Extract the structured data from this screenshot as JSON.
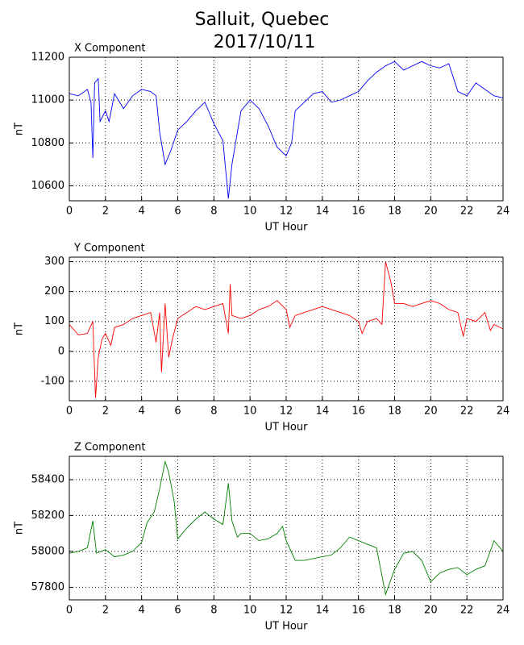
{
  "title": [
    "Salluit, Quebec",
    "2017/10/11"
  ],
  "chart_data": [
    {
      "type": "line",
      "title": "X Component",
      "xlabel": "UT Hour",
      "ylabel": "nT",
      "grid": true,
      "xlim": [
        0,
        24
      ],
      "xticks": [
        0,
        2,
        4,
        6,
        8,
        10,
        12,
        14,
        16,
        18,
        20,
        22,
        24
      ],
      "ylim": [
        10530,
        11200
      ],
      "yticks": [
        10600,
        10800,
        11000,
        11200
      ],
      "x": [
        0,
        0.5,
        1,
        1.2,
        1.3,
        1.4,
        1.6,
        1.7,
        2,
        2.2,
        2.5,
        3,
        3.5,
        4,
        4.5,
        4.8,
        5,
        5.3,
        5.6,
        6,
        6.5,
        7,
        7.5,
        8,
        8.5,
        8.8,
        9,
        9.5,
        10,
        10.5,
        11,
        11.5,
        12,
        12.3,
        12.5,
        13,
        13.5,
        14,
        14.5,
        15,
        15.5,
        16,
        16.5,
        17,
        17.5,
        18,
        18.5,
        19,
        19.5,
        20,
        20.5,
        21,
        21.5,
        22,
        22.5,
        23,
        23.5,
        24
      ],
      "series": [
        {
          "color": "#0000ff",
          "values": [
            11030,
            11020,
            11050,
            10990,
            10730,
            11080,
            11100,
            10900,
            10950,
            10900,
            11030,
            10960,
            11020,
            11050,
            11040,
            11020,
            10850,
            10700,
            10760,
            10860,
            10900,
            10950,
            10990,
            10890,
            10810,
            10540,
            10700,
            10950,
            11000,
            10960,
            10880,
            10780,
            10740,
            10800,
            10950,
            10990,
            11030,
            11040,
            10990,
            11000,
            11020,
            11040,
            11090,
            11130,
            11160,
            11180,
            11140,
            11160,
            11180,
            11160,
            11150,
            11170,
            11040,
            11020,
            11080,
            11050,
            11020,
            11010
          ]
        }
      ]
    },
    {
      "type": "line",
      "title": "Y Component",
      "xlabel": "UT Hour",
      "ylabel": "nT",
      "grid": true,
      "xlim": [
        0,
        24
      ],
      "xticks": [
        0,
        2,
        4,
        6,
        8,
        10,
        12,
        14,
        16,
        18,
        20,
        22,
        24
      ],
      "ylim": [
        -165,
        315
      ],
      "yticks": [
        -100,
        0,
        100,
        200,
        300
      ],
      "x": [
        0,
        0.5,
        1,
        1.3,
        1.45,
        1.6,
        1.8,
        2,
        2.3,
        2.5,
        3,
        3.5,
        4,
        4.5,
        4.8,
        5,
        5.1,
        5.3,
        5.5,
        5.7,
        6,
        6.5,
        7,
        7.5,
        8,
        8.5,
        8.8,
        8.9,
        9,
        9.5,
        10,
        10.5,
        11,
        11.5,
        12,
        12.2,
        12.5,
        13,
        13.5,
        14,
        14.5,
        15,
        15.5,
        16,
        16.2,
        16.5,
        17,
        17.3,
        17.5,
        17.8,
        18,
        18.5,
        19,
        19.5,
        20,
        20.5,
        21,
        21.5,
        21.8,
        22,
        22.5,
        23,
        23.3,
        23.5,
        24
      ],
      "series": [
        {
          "color": "#ff0000",
          "values": [
            90,
            55,
            60,
            100,
            -155,
            -20,
            40,
            60,
            20,
            80,
            90,
            110,
            120,
            130,
            30,
            130,
            -70,
            160,
            -20,
            40,
            110,
            130,
            150,
            140,
            150,
            160,
            60,
            225,
            120,
            110,
            120,
            140,
            150,
            170,
            140,
            80,
            120,
            130,
            140,
            150,
            140,
            130,
            120,
            100,
            60,
            100,
            110,
            90,
            300,
            230,
            160,
            160,
            150,
            160,
            170,
            160,
            140,
            130,
            50,
            110,
            100,
            130,
            70,
            90,
            75
          ]
        }
      ]
    },
    {
      "type": "line",
      "title": "Z Component",
      "xlabel": "UT Hour",
      "ylabel": "nT",
      "grid": true,
      "xlim": [
        0,
        24
      ],
      "xticks": [
        0,
        2,
        4,
        6,
        8,
        10,
        12,
        14,
        16,
        18,
        20,
        22,
        24
      ],
      "ylim": [
        57730,
        58530
      ],
      "yticks": [
        57800,
        58000,
        58200,
        58400
      ],
      "x": [
        0,
        0.5,
        1,
        1.3,
        1.5,
        2,
        2.5,
        3,
        3.5,
        4,
        4.3,
        4.7,
        5,
        5.3,
        5.5,
        5.8,
        6,
        6.5,
        7,
        7.5,
        8,
        8.5,
        8.8,
        9,
        9.3,
        9.5,
        10,
        10.5,
        11,
        11.5,
        11.8,
        12,
        12.5,
        13,
        13.5,
        14,
        14.5,
        15,
        15.5,
        16,
        16.5,
        17,
        17.5,
        18,
        18.5,
        19,
        19.5,
        20,
        20.5,
        21,
        21.5,
        22,
        22.5,
        23,
        23.5,
        24
      ],
      "series": [
        {
          "color": "#008000",
          "values": [
            57990,
            58000,
            58020,
            58170,
            57990,
            58010,
            57970,
            57980,
            58000,
            58050,
            58160,
            58220,
            58350,
            58500,
            58440,
            58280,
            58070,
            58130,
            58180,
            58220,
            58180,
            58150,
            58380,
            58170,
            58080,
            58100,
            58100,
            58060,
            58070,
            58100,
            58140,
            58060,
            57950,
            57950,
            57960,
            57970,
            57980,
            58020,
            58080,
            58060,
            58040,
            58020,
            57760,
            57900,
            57990,
            58000,
            57950,
            57830,
            57880,
            57900,
            57910,
            57870,
            57900,
            57920,
            58060,
            58000
          ]
        }
      ]
    }
  ]
}
